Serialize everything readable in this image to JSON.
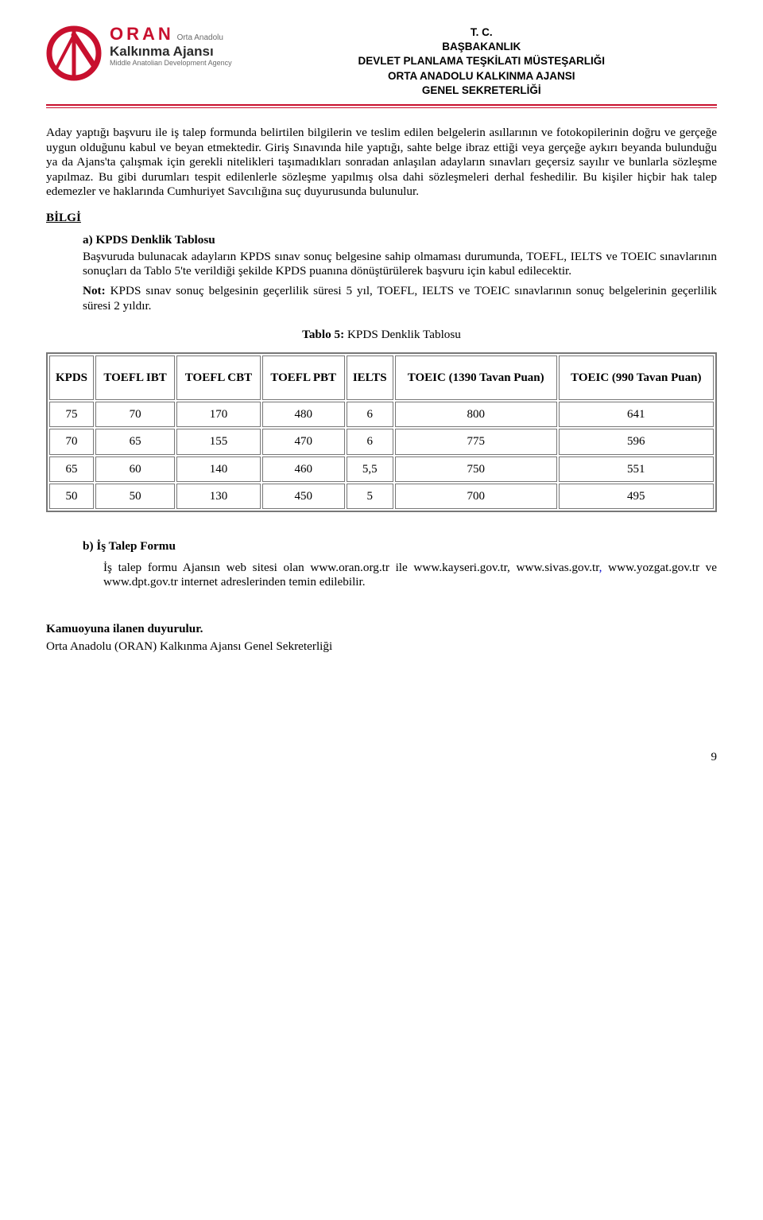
{
  "header": {
    "logo": {
      "brand": "ORAN",
      "brand_sub": "Orta Anadolu",
      "title": "Kalkınma Ajansı",
      "subtitle": "Middle Anatolian Development Agency",
      "accent_color": "#c8102e"
    },
    "lines": [
      "T. C.",
      "BAŞBAKANLIK",
      "DEVLET PLANLAMA TEŞKİLATI MÜSTEŞARLIĞI",
      "ORTA ANADOLU KALKINMA AJANSI",
      "GENEL SEKRETERLİĞİ"
    ]
  },
  "para1": "Aday yaptığı başvuru ile iş talep formunda belirtilen bilgilerin ve teslim edilen belgelerin asıllarının ve fotokopilerinin doğru ve gerçeğe uygun olduğunu kabul ve beyan etmektedir. Giriş Sınavında hile yaptığı, sahte belge ibraz ettiği veya gerçeğe aykırı beyanda bulunduğu ya da Ajans'ta çalışmak için gerekli nitelikleri taşımadıkları sonradan anlaşılan adayların sınavları geçersiz sayılır ve bunlarla sözleşme yapılmaz. Bu gibi durumları tespit edilenlerle sözleşme yapılmış olsa dahi sözleşmeleri derhal feshedilir. Bu kişiler hiçbir hak talep edemezler ve haklarında Cumhuriyet Savcılığına suç duyurusunda bulunulur.",
  "bilgi_head": "BİLGİ",
  "item_a": {
    "marker": "a)",
    "title": "KPDS Denklik Tablosu",
    "p1": "Başvuruda bulunacak adayların KPDS sınav sonuç belgesine sahip olmaması durumunda, TOEFL, IELTS ve TOEIC sınavlarının sonuçları da Tablo 5'te verildiği şekilde KPDS puanına dönüştürülerek başvuru için kabul edilecektir.",
    "note_label": "Not:",
    "note_text": " KPDS sınav sonuç belgesinin geçerlilik süresi 5 yıl, TOEFL, IELTS ve TOEIC sınavlarının sonuç belgelerinin geçerlilik süresi 2 yıldır."
  },
  "table": {
    "caption_bold": "Tablo 5:",
    "caption_rest": " KPDS Denklik Tablosu",
    "columns": [
      "KPDS",
      "TOEFL IBT",
      "TOEFL CBT",
      "TOEFL PBT",
      "IELTS",
      "TOEIC (1390 Tavan Puan)",
      "TOEIC (990 Tavan Puan)"
    ],
    "rows": [
      [
        "75",
        "70",
        "170",
        "480",
        "6",
        "800",
        "641"
      ],
      [
        "70",
        "65",
        "155",
        "470",
        "6",
        "775",
        "596"
      ],
      [
        "65",
        "60",
        "140",
        "460",
        "5,5",
        "750",
        "551"
      ],
      [
        "50",
        "50",
        "130",
        "450",
        "5",
        "700",
        "495"
      ]
    ],
    "border_color": "#777777",
    "header_fontsize": 15,
    "cell_fontsize": 15
  },
  "item_b": {
    "marker": "b)",
    "title": "İş Talep Formu",
    "text_pre": "İş talep formu Ajansın web sitesi olan www.oran.org.tr ile www.kayseri.gov.tr, www.sivas.gov.tr",
    "text_link": ",",
    "text_post": " www.yozgat.gov.tr ve www.dpt.gov.tr internet adreslerinden temin edilebilir."
  },
  "closing": {
    "bold": "Kamuoyuna ilanen duyurulur.",
    "line": "Orta Anadolu (ORAN) Kalkınma Ajansı Genel Sekreterliği"
  },
  "page_number": "9"
}
